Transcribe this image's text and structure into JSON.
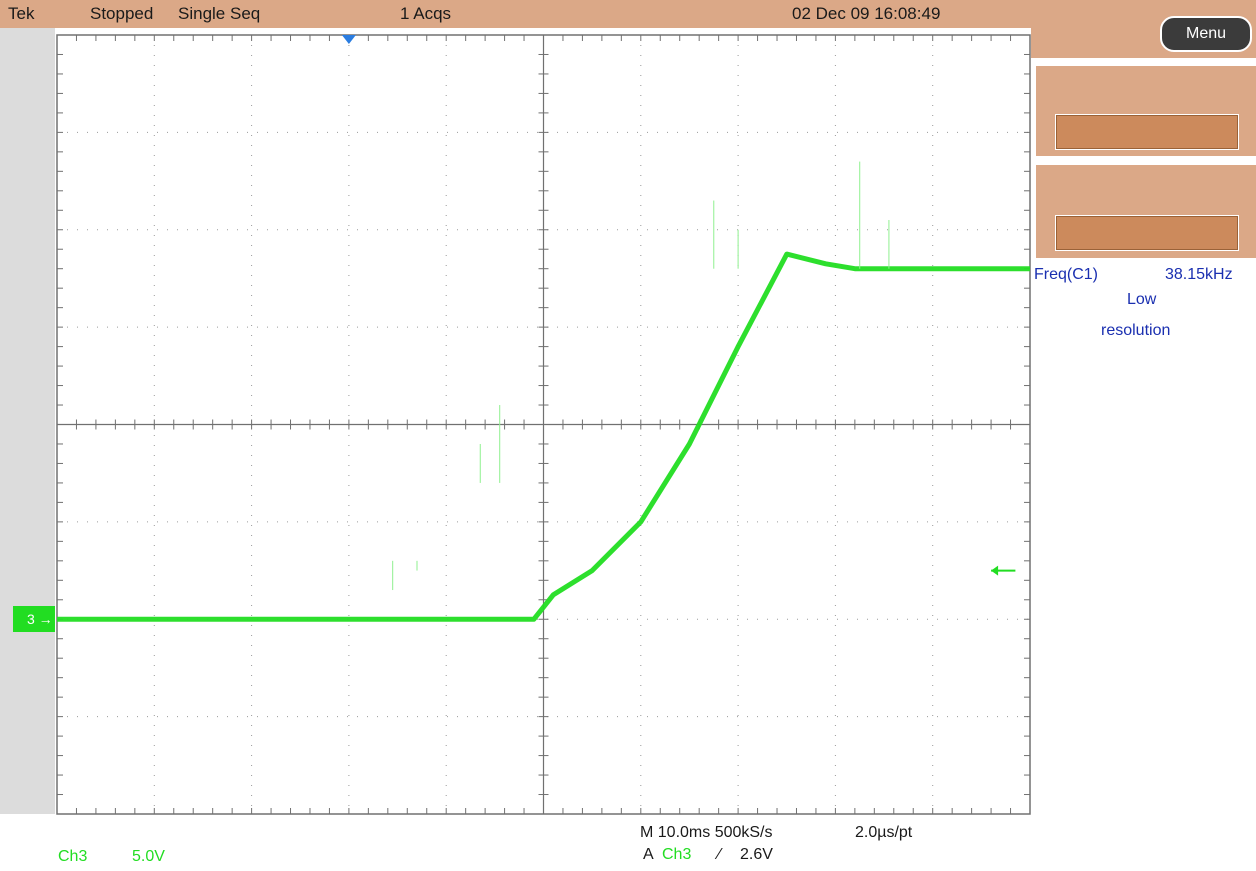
{
  "status_bar": {
    "brand": "Tek",
    "run_state": "Stopped",
    "mode": "Single Seq",
    "acquisitions": "1 Acqs",
    "datetime": "02 Dec 09 16:08:49"
  },
  "side_panel": {
    "menu_label": "Menu",
    "measurement": {
      "name": "Freq(C1)",
      "value": "38.15kHz",
      "note_line1": "Low",
      "note_line2": "resolution"
    }
  },
  "channel": {
    "marker_label": "3",
    "name": "Ch3",
    "scale": "5.0V",
    "color": "#22dd22"
  },
  "timebase": {
    "horizontal": "M 10.0ms 500kS/s",
    "per_point": "2.0µs/pt",
    "trigger_prefix": "A",
    "trigger_source": "Ch3",
    "trigger_slope_symbol": "⁄",
    "trigger_level": "2.6V"
  },
  "icons": {
    "trigger_position": "trigger-position-icon",
    "trigger_level": "trigger-level-arrow-icon",
    "ground_marker": "channel-ground-marker-icon"
  },
  "chart_data": {
    "type": "line",
    "title": "",
    "xlabel": "",
    "ylabel": "",
    "x_divisions": 10,
    "y_divisions": 8,
    "volts_per_div": 5.0,
    "seconds_per_div": 0.01,
    "xlim_div": [
      0,
      10
    ],
    "ylim_div": [
      -4,
      4
    ],
    "ground_level_div": -2,
    "grid": true,
    "series": [
      {
        "name": "Ch3",
        "color": "#22dd22",
        "points_div": [
          [
            0.0,
            -2.0
          ],
          [
            4.9,
            -2.0
          ],
          [
            5.1,
            -1.75
          ],
          [
            5.5,
            -1.5
          ],
          [
            6.0,
            -1.0
          ],
          [
            6.5,
            -0.2
          ],
          [
            7.0,
            0.8
          ],
          [
            7.5,
            1.75
          ],
          [
            7.9,
            1.65
          ],
          [
            8.2,
            1.6
          ],
          [
            10.0,
            1.6
          ]
        ]
      }
    ],
    "glitch_spikes_div": [
      {
        "x": 13.35,
        "top": 2.3
      },
      {
        "x": 16.5,
        "top": 2.5
      },
      {
        "x": 17.0,
        "top": 2.1
      },
      {
        "x": 6.0,
        "top": -0.3
      },
      {
        "x": 6.3,
        "top": 0.3
      }
    ]
  }
}
